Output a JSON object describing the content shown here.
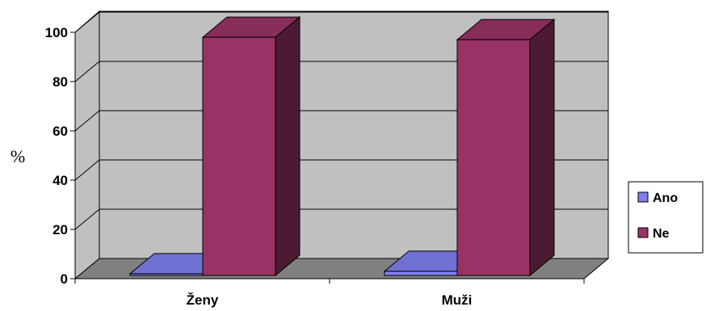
{
  "chart_data": {
    "type": "bar",
    "categories": [
      "Ženy",
      "Muži"
    ],
    "series": [
      {
        "name": "Ano",
        "values": [
          2,
          3
        ],
        "color": "#8080f0"
      },
      {
        "name": "Ne",
        "values": [
          98,
          97
        ],
        "color": "#993366"
      }
    ],
    "ylabel": "%",
    "xlabel": "",
    "ylim": [
      0,
      100
    ],
    "yticks": [
      "0",
      "20",
      "40",
      "60",
      "80",
      "100"
    ],
    "grid": true,
    "legend": "right"
  }
}
